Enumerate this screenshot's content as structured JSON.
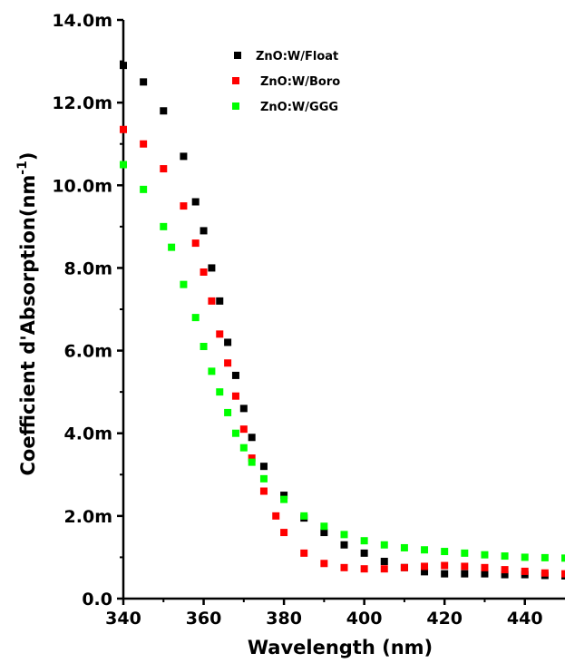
{
  "chart_data": {
    "type": "scatter",
    "xlabel": "Wavelength (nm)",
    "ylabel_main": "Coefficient d'Absorption(nm",
    "ylabel_sup": "-1",
    "ylabel_close": ")",
    "xlim": [
      340,
      450
    ],
    "ylim": [
      0,
      0.014
    ],
    "x_ticks": [
      340,
      360,
      380,
      400,
      420,
      440
    ],
    "x_tick_labels": [
      "340",
      "360",
      "380",
      "400",
      "420",
      "440"
    ],
    "y_ticks": [
      0,
      0.002,
      0.004,
      0.006,
      0.008,
      0.01,
      0.012,
      0.014
    ],
    "y_tick_labels": [
      "0.0",
      "2.0m",
      "4.0m",
      "6.0m",
      "8.0m",
      "10.0m",
      "12.0m",
      "14.0m"
    ],
    "grid": false,
    "legend_position": "top-center",
    "series": [
      {
        "name": "ZnO:W/Float",
        "color": "#000000",
        "points": [
          [
            340,
            0.0129
          ],
          [
            345,
            0.0125
          ],
          [
            350,
            0.0118
          ],
          [
            355,
            0.0107
          ],
          [
            358,
            0.0096
          ],
          [
            360,
            0.0089
          ],
          [
            362,
            0.008
          ],
          [
            364,
            0.0072
          ],
          [
            366,
            0.0062
          ],
          [
            368,
            0.0054
          ],
          [
            370,
            0.0046
          ],
          [
            372,
            0.0039
          ],
          [
            375,
            0.0032
          ],
          [
            380,
            0.0025
          ],
          [
            385,
            0.00195
          ],
          [
            390,
            0.0016
          ],
          [
            395,
            0.0013
          ],
          [
            400,
            0.0011
          ],
          [
            405,
            0.0009
          ],
          [
            410,
            0.00075
          ],
          [
            415,
            0.00065
          ],
          [
            420,
            0.0006
          ],
          [
            425,
            0.0006
          ],
          [
            430,
            0.0006
          ],
          [
            435,
            0.00058
          ],
          [
            440,
            0.00058
          ],
          [
            445,
            0.00056
          ],
          [
            450,
            0.00055
          ]
        ]
      },
      {
        "name": "ZnO:W/Boro",
        "color": "#ff0000",
        "points": [
          [
            340,
            0.01135
          ],
          [
            345,
            0.011
          ],
          [
            350,
            0.0104
          ],
          [
            355,
            0.0095
          ],
          [
            358,
            0.0086
          ],
          [
            360,
            0.0079
          ],
          [
            362,
            0.0072
          ],
          [
            364,
            0.0064
          ],
          [
            366,
            0.0057
          ],
          [
            368,
            0.0049
          ],
          [
            370,
            0.0041
          ],
          [
            372,
            0.0034
          ],
          [
            375,
            0.0026
          ],
          [
            378,
            0.002
          ],
          [
            380,
            0.0016
          ],
          [
            385,
            0.0011
          ],
          [
            390,
            0.00085
          ],
          [
            395,
            0.00075
          ],
          [
            400,
            0.00072
          ],
          [
            405,
            0.00072
          ],
          [
            410,
            0.00075
          ],
          [
            415,
            0.00078
          ],
          [
            420,
            0.0008
          ],
          [
            425,
            0.00078
          ],
          [
            430,
            0.00075
          ],
          [
            435,
            0.0007
          ],
          [
            440,
            0.00066
          ],
          [
            445,
            0.00062
          ],
          [
            450,
            0.0006
          ]
        ]
      },
      {
        "name": "ZnO:W/GGG",
        "color": "#00ff00",
        "points": [
          [
            340,
            0.0105
          ],
          [
            345,
            0.0099
          ],
          [
            350,
            0.009
          ],
          [
            352,
            0.0085
          ],
          [
            355,
            0.0076
          ],
          [
            358,
            0.0068
          ],
          [
            360,
            0.0061
          ],
          [
            362,
            0.0055
          ],
          [
            364,
            0.005
          ],
          [
            366,
            0.0045
          ],
          [
            368,
            0.004
          ],
          [
            370,
            0.00365
          ],
          [
            372,
            0.0033
          ],
          [
            375,
            0.0029
          ],
          [
            380,
            0.0024
          ],
          [
            385,
            0.002
          ],
          [
            390,
            0.00175
          ],
          [
            395,
            0.00155
          ],
          [
            400,
            0.0014
          ],
          [
            405,
            0.0013
          ],
          [
            410,
            0.00123
          ],
          [
            415,
            0.00118
          ],
          [
            420,
            0.00114
          ],
          [
            425,
            0.0011
          ],
          [
            430,
            0.00106
          ],
          [
            435,
            0.00103
          ],
          [
            440,
            0.001
          ],
          [
            445,
            0.00099
          ],
          [
            450,
            0.00098
          ]
        ]
      }
    ]
  }
}
